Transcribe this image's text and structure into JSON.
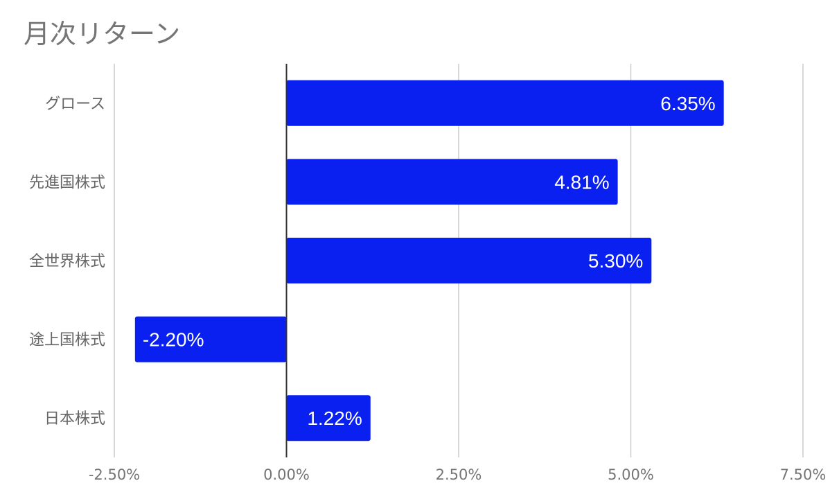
{
  "chart_data": {
    "type": "bar",
    "orientation": "horizontal",
    "title": "月次リターン",
    "categories": [
      "グロース",
      "先進国株式",
      "全世界株式",
      "途上国株式",
      "日本株式"
    ],
    "values": [
      6.35,
      4.81,
      5.3,
      -2.2,
      1.22
    ],
    "data_labels": [
      "6.35%",
      "4.81%",
      "5.30%",
      "-2.20%",
      "1.22%"
    ],
    "xlim": [
      -2.5,
      7.5
    ],
    "x_ticks": [
      -2.5,
      0,
      2.5,
      5,
      7.5
    ],
    "x_tick_labels": [
      "-2.50%",
      "0.00%",
      "2.50%",
      "5.00%",
      "7.50%"
    ],
    "bar_color": "#0a20f0",
    "grid": true,
    "legend": "none"
  }
}
